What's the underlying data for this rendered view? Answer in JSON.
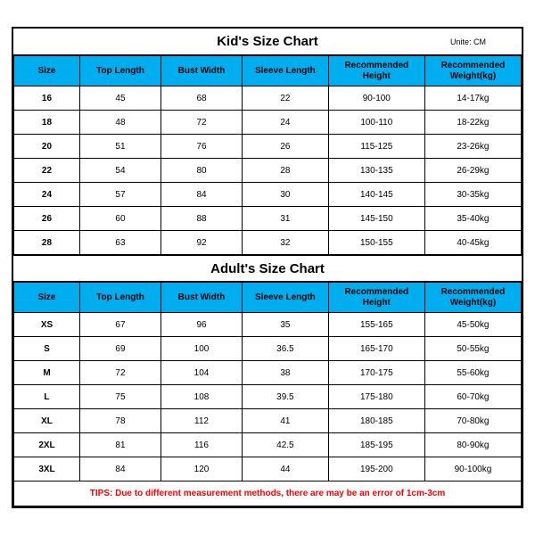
{
  "unite_label": "Unite: CM",
  "columns": [
    "Size",
    "Top Length",
    "Bust Width",
    "Sleeve Length",
    "Recommended Height",
    "Recommended Weight(kg)"
  ],
  "kids": {
    "title": "Kid's Size Chart",
    "rows": [
      [
        "16",
        "45",
        "68",
        "22",
        "90-100",
        "14-17kg"
      ],
      [
        "18",
        "48",
        "72",
        "24",
        "100-110",
        "18-22kg"
      ],
      [
        "20",
        "51",
        "76",
        "26",
        "115-125",
        "23-26kg"
      ],
      [
        "22",
        "54",
        "80",
        "28",
        "130-135",
        "26-29kg"
      ],
      [
        "24",
        "57",
        "84",
        "30",
        "140-145",
        "30-35kg"
      ],
      [
        "26",
        "60",
        "88",
        "31",
        "145-150",
        "35-40kg"
      ],
      [
        "28",
        "63",
        "92",
        "32",
        "150-155",
        "40-45kg"
      ]
    ]
  },
  "adults": {
    "title": "Adult's Size Chart",
    "rows": [
      [
        "XS",
        "67",
        "96",
        "35",
        "155-165",
        "45-50kg"
      ],
      [
        "S",
        "69",
        "100",
        "36.5",
        "165-170",
        "50-55kg"
      ],
      [
        "M",
        "72",
        "104",
        "38",
        "170-175",
        "55-60kg"
      ],
      [
        "L",
        "75",
        "108",
        "39.5",
        "175-180",
        "60-70kg"
      ],
      [
        "XL",
        "78",
        "112",
        "41",
        "180-185",
        "70-80kg"
      ],
      [
        "2XL",
        "81",
        "116",
        "42.5",
        "185-195",
        "80-90kg"
      ],
      [
        "3XL",
        "84",
        "120",
        "44",
        "195-200",
        "90-100kg"
      ]
    ]
  },
  "tips": "TIPS: Due to different measurement methods, there are may be an error of 1cm-3cm"
}
